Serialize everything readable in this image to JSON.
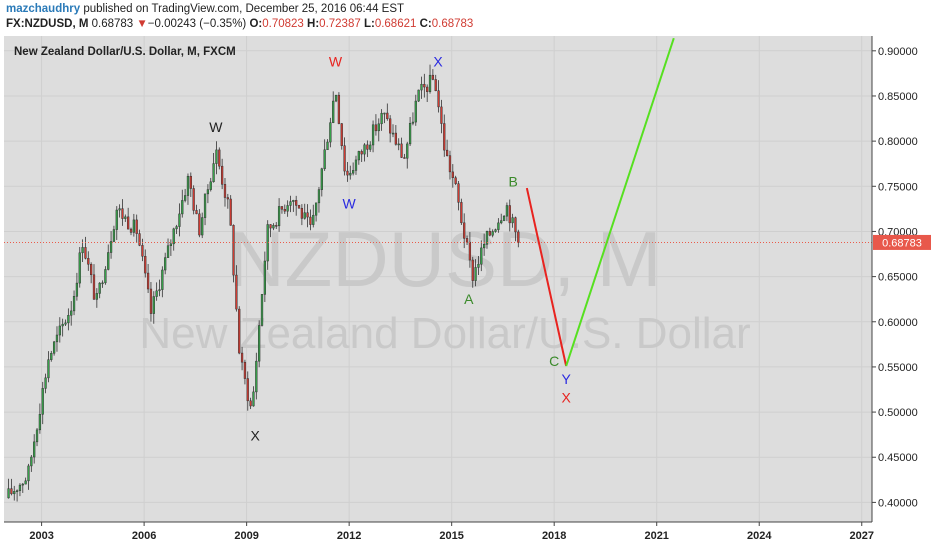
{
  "header": {
    "author": "mazchaudhry",
    "published_text": " published on TradingView.com, December 25, 2016 06:44 EST",
    "symbol": "FX:NZDUSD, M",
    "last": "0.68783",
    "change": "−0.00243 (−0.35%)",
    "o_label": "O:",
    "o_value": "0.70823",
    "h_label": "H:",
    "h_value": "0.72387",
    "l_label": "L:",
    "l_value": "0.68621",
    "c_label": "C:",
    "c_value": "0.68783"
  },
  "chart_title": "New Zealand Dollar/U.S. Dollar, M, FXCM",
  "watermark": {
    "line1": "NZDUSD, M",
    "line2": "New Zealand Dollar/U.S. Dollar"
  },
  "colors": {
    "up": "#37a24a",
    "down": "#d03b32",
    "background": "#dddddd",
    "axis": "#ffffff",
    "wave_red": "#e8231f",
    "wave_green": "#56e020",
    "price_line": "#ea5b4a"
  },
  "chart_data": {
    "type": "candlestick",
    "x_range": [
      2001.9,
      2027.3
    ],
    "y_range": [
      0.3783,
      0.9164
    ],
    "x_ticks": [
      {
        "value": 2003,
        "label": "2003"
      },
      {
        "value": 2006,
        "label": "2006"
      },
      {
        "value": 2009,
        "label": "2009"
      },
      {
        "value": 2012,
        "label": "2012"
      },
      {
        "value": 2015,
        "label": "2015"
      },
      {
        "value": 2018,
        "label": "2018"
      },
      {
        "value": 2021,
        "label": "2021"
      },
      {
        "value": 2024,
        "label": "2024"
      },
      {
        "value": 2027,
        "label": "2027"
      }
    ],
    "y_ticks": [
      "0.90000",
      "0.85000",
      "0.80000",
      "0.75000",
      "0.70000",
      "0.65000",
      "0.60000",
      "0.55000",
      "0.50000",
      "0.45000",
      "0.40000"
    ],
    "current_price": {
      "value": 0.68783,
      "label": "0.68783"
    },
    "anchors": [
      [
        2001.95,
        0.405
      ],
      [
        2002.6,
        0.43
      ],
      [
        2003.2,
        0.56
      ],
      [
        2003.9,
        0.62
      ],
      [
        2004.2,
        0.69
      ],
      [
        2004.6,
        0.62
      ],
      [
        2005.2,
        0.725
      ],
      [
        2005.8,
        0.7
      ],
      [
        2006.2,
        0.61
      ],
      [
        2007.3,
        0.76
      ],
      [
        2007.6,
        0.7
      ],
      [
        2008.1,
        0.79
      ],
      [
        2008.5,
        0.72
      ],
      [
        2008.8,
        0.56
      ],
      [
        2009.15,
        0.5
      ],
      [
        2009.6,
        0.7
      ],
      [
        2010.3,
        0.74
      ],
      [
        2010.9,
        0.7
      ],
      [
        2011.6,
        0.86
      ],
      [
        2011.9,
        0.76
      ],
      [
        2012.4,
        0.79
      ],
      [
        2013.0,
        0.83
      ],
      [
        2013.6,
        0.78
      ],
      [
        2014.0,
        0.85
      ],
      [
        2014.5,
        0.87
      ],
      [
        2014.8,
        0.79
      ],
      [
        2015.1,
        0.75
      ],
      [
        2015.6,
        0.65
      ],
      [
        2016.0,
        0.69
      ],
      [
        2016.6,
        0.73
      ],
      [
        2016.95,
        0.688
      ]
    ],
    "candles_per_year": 12,
    "annotations": [
      {
        "text": "W",
        "x": 2008.1,
        "y": 0.8155,
        "color": "#222222"
      },
      {
        "text": "W",
        "x": 2011.6,
        "y": 0.888,
        "color": "#e8231f"
      },
      {
        "text": "X",
        "x": 2014.6,
        "y": 0.888,
        "color": "#2a2ae0"
      },
      {
        "text": "W",
        "x": 2012.0,
        "y": 0.731,
        "color": "#2a2ae0"
      },
      {
        "text": "X",
        "x": 2009.25,
        "y": 0.474,
        "color": "#222222"
      },
      {
        "text": "B",
        "x": 2016.8,
        "y": 0.7555,
        "color": "#3a8a2a"
      },
      {
        "text": "A",
        "x": 2015.5,
        "y": 0.625,
        "color": "#3a8a2a"
      },
      {
        "text": "C",
        "x": 2018.0,
        "y": 0.5565,
        "color": "#3a8a2a"
      },
      {
        "text": "Y",
        "x": 2018.35,
        "y": 0.5365,
        "color": "#2a2ae0"
      },
      {
        "text": "X",
        "x": 2018.35,
        "y": 0.516,
        "color": "#e8231f"
      }
    ],
    "lines": [
      {
        "name": "red-wave",
        "color": "#e8231f",
        "points": [
          [
            2017.2,
            0.748
          ],
          [
            2018.35,
            0.551
          ]
        ]
      },
      {
        "name": "green-wave",
        "color": "#56e020",
        "points": [
          [
            2018.35,
            0.551
          ],
          [
            2021.5,
            0.914
          ]
        ]
      }
    ]
  }
}
